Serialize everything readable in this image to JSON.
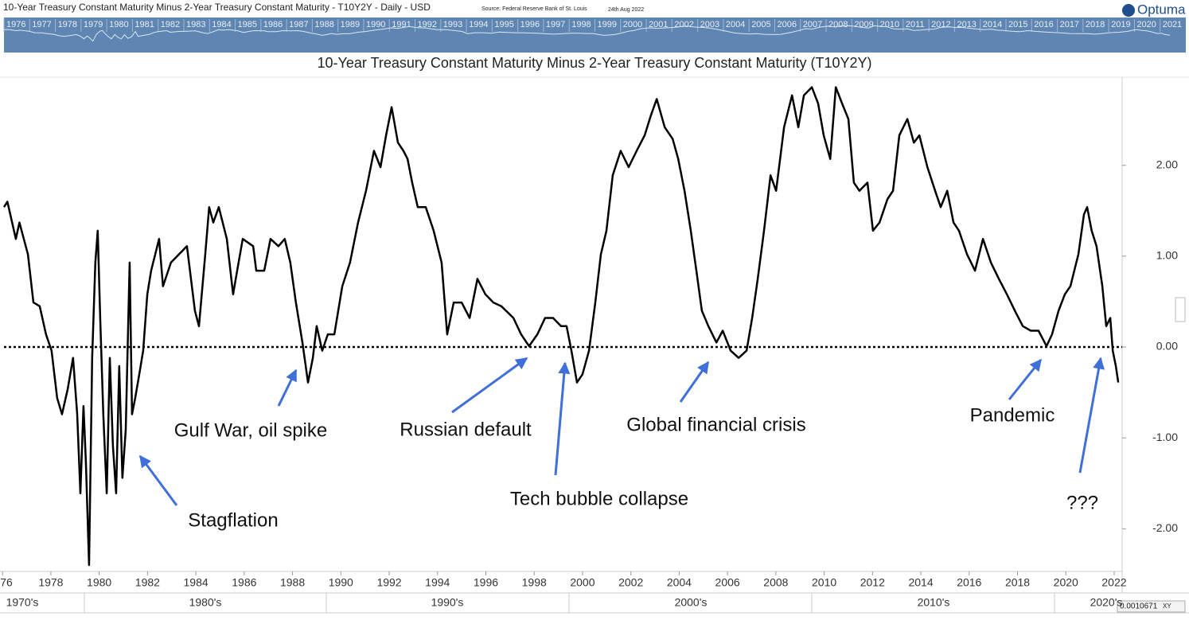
{
  "header": {
    "title": "10-Year Treasury Constant Maturity Minus 2-Year Treasury Constant Maturity - T10Y2Y - Daily - USD",
    "source": "Source: Federal Reserve Bank of St. Louis",
    "date": "24th Aug 2022",
    "logo": "Optuma"
  },
  "navigator_years": [
    1976,
    1977,
    1978,
    1979,
    1980,
    1981,
    1982,
    1983,
    1984,
    1985,
    1986,
    1987,
    1988,
    1989,
    1990,
    1991,
    1992,
    1993,
    1994,
    1995,
    1996,
    1997,
    1998,
    1999,
    2000,
    2001,
    2002,
    2003,
    2004,
    2005,
    2006,
    2007,
    2008,
    2009,
    2010,
    2011,
    2012,
    2013,
    2014,
    2015,
    2016,
    2017,
    2018,
    2019,
    2020,
    2021
  ],
  "decades": [
    "1970's",
    "1980's",
    "1990's",
    "2000's",
    "2010's",
    "2020's"
  ],
  "footer": {
    "scale": "0.0010671",
    "mode": "XY"
  },
  "chart_data": {
    "type": "line",
    "title": "10-Year Treasury Constant Maturity Minus 2-Year Treasury Constant Maturity (T10Y2Y)",
    "x": [
      1976.06,
      1976.2,
      1976.55,
      1976.7,
      1977.05,
      1977.28,
      1977.54,
      1977.8,
      1978.03,
      1978.26,
      1978.46,
      1978.69,
      1978.92,
      1979.09,
      1979.22,
      1979.35,
      1979.45,
      1979.58,
      1979.71,
      1979.84,
      1979.94,
      1980.04,
      1980.17,
      1980.31,
      1980.44,
      1980.57,
      1980.7,
      1980.83,
      1980.96,
      1981.1,
      1981.26,
      1981.36,
      1981.49,
      1981.66,
      1981.82,
      1981.99,
      1982.15,
      1982.48,
      1982.64,
      1982.97,
      1983.3,
      1983.63,
      1983.96,
      1984.13,
      1984.39,
      1984.55,
      1984.72,
      1984.95,
      1985.28,
      1985.54,
      1985.71,
      1985.94,
      1986.37,
      1986.5,
      1986.83,
      1987.09,
      1987.42,
      1987.68,
      1987.91,
      1988.14,
      1988.41,
      1988.64,
      1988.84,
      1989.0,
      1989.23,
      1989.46,
      1989.73,
      1990.06,
      1990.38,
      1990.71,
      1991.04,
      1991.37,
      1991.64,
      1991.87,
      1992.1,
      1992.36,
      1992.59,
      1992.76,
      1992.95,
      1993.18,
      1993.51,
      1993.84,
      1994.17,
      1994.4,
      1994.67,
      1995.0,
      1995.33,
      1995.65,
      1995.98,
      1996.31,
      1996.64,
      1997.14,
      1997.46,
      1997.79,
      1998.13,
      1998.45,
      1998.78,
      1999.11,
      1999.34,
      1999.54,
      1999.77,
      2000.0,
      2000.27,
      2000.53,
      2000.76,
      2000.99,
      2001.25,
      2001.58,
      2001.91,
      2002.24,
      2002.57,
      2002.83,
      2003.07,
      2003.4,
      2003.73,
      2003.96,
      2004.22,
      2004.48,
      2004.71,
      2004.94,
      2005.21,
      2005.54,
      2005.8,
      2006.13,
      2006.46,
      2006.79,
      2007.02,
      2007.25,
      2007.51,
      2007.78,
      2008.01,
      2008.34,
      2008.67,
      2008.93,
      2009.16,
      2009.49,
      2009.75,
      2009.98,
      2010.25,
      2010.48,
      2010.74,
      2011.0,
      2011.23,
      2011.46,
      2011.79,
      2012.02,
      2012.29,
      2012.62,
      2012.85,
      2013.11,
      2013.44,
      2013.71,
      2013.94,
      2014.27,
      2014.59,
      2014.82,
      2015.09,
      2015.35,
      2015.58,
      2015.91,
      2016.24,
      2016.57,
      2016.9,
      2017.23,
      2017.56,
      2017.89,
      2018.22,
      2018.55,
      2018.87,
      2019.2,
      2019.43,
      2019.7,
      2019.96,
      2020.19,
      2020.52,
      2020.75,
      2020.88,
      2021.07,
      2021.27,
      2021.51,
      2021.67,
      2021.84,
      2021.94,
      2022.07,
      2022.17
    ],
    "series": [
      {
        "color": "#000000",
        "values": [
          1.54,
          1.6,
          1.19,
          1.37,
          1.02,
          0.49,
          0.45,
          0.14,
          -0.04,
          -0.56,
          -0.74,
          -0.47,
          -0.12,
          -0.74,
          -1.61,
          -0.65,
          -1.26,
          -2.4,
          -0.12,
          0.93,
          1.28,
          0.32,
          -0.74,
          -1.61,
          -0.12,
          -1.09,
          -1.61,
          -0.21,
          -1.44,
          -0.91,
          0.93,
          -0.74,
          -0.56,
          -0.3,
          -0.04,
          0.58,
          0.84,
          1.19,
          0.67,
          0.93,
          1.02,
          1.11,
          0.4,
          0.23,
          1.02,
          1.54,
          1.37,
          1.54,
          1.19,
          0.58,
          0.84,
          1.19,
          1.11,
          0.84,
          0.84,
          1.19,
          1.11,
          1.19,
          0.93,
          0.49,
          0.05,
          -0.39,
          -0.12,
          0.23,
          -0.04,
          0.14,
          0.14,
          0.67,
          0.93,
          1.37,
          1.72,
          2.16,
          1.98,
          2.33,
          2.64,
          2.25,
          2.16,
          2.07,
          1.81,
          1.54,
          1.54,
          1.28,
          0.93,
          0.14,
          0.49,
          0.49,
          0.32,
          0.75,
          0.58,
          0.49,
          0.45,
          0.32,
          0.14,
          0.01,
          0.14,
          0.32,
          0.32,
          0.23,
          0.23,
          -0.04,
          -0.39,
          -0.3,
          -0.04,
          0.49,
          1.02,
          1.28,
          1.89,
          2.16,
          1.98,
          2.16,
          2.33,
          2.55,
          2.73,
          2.42,
          2.29,
          2.07,
          1.72,
          1.28,
          0.84,
          0.4,
          0.23,
          0.05,
          0.18,
          -0.04,
          -0.12,
          -0.04,
          0.32,
          0.75,
          1.28,
          1.89,
          1.72,
          2.42,
          2.77,
          2.42,
          2.77,
          2.86,
          2.68,
          2.33,
          2.07,
          2.86,
          2.68,
          2.51,
          1.81,
          1.72,
          1.81,
          1.28,
          1.37,
          1.63,
          1.72,
          2.33,
          2.51,
          2.25,
          2.33,
          1.98,
          1.72,
          1.54,
          1.72,
          1.37,
          1.28,
          1.02,
          0.84,
          1.19,
          0.93,
          0.75,
          0.58,
          0.4,
          0.23,
          0.18,
          0.18,
          0.01,
          0.14,
          0.4,
          0.58,
          0.67,
          1.02,
          1.46,
          1.54,
          1.28,
          1.11,
          0.67,
          0.23,
          0.32,
          -0.04,
          -0.21,
          -0.39
        ]
      }
    ],
    "xlim": [
      1976.06,
      2022.33
    ],
    "xticks": [
      {
        "value": 1976,
        "label": "76"
      },
      1978,
      1980,
      1982,
      1984,
      1986,
      1988,
      1990,
      1992,
      1994,
      1996,
      1998,
      2000,
      2002,
      2004,
      2006,
      2008,
      2010,
      2012,
      2014,
      2016,
      2018,
      2020,
      2022
    ],
    "ylim": [
      -2.47,
      2.97
    ],
    "yticks": [
      {
        "value": -2,
        "label": "-2.00"
      },
      {
        "value": -1,
        "label": "-1.00"
      },
      {
        "value": 0,
        "label": "0.00"
      },
      {
        "value": 1,
        "label": "1.00"
      },
      {
        "value": 2,
        "label": "2.00"
      }
    ],
    "reference_line": 0,
    "annotations": [
      "Stagflation",
      "Gulf War, oil spike",
      "Russian default",
      "Tech bubble collapse",
      "Global financial crisis",
      "Pandemic",
      "???"
    ],
    "annotation_color": "#3f6fd8"
  }
}
